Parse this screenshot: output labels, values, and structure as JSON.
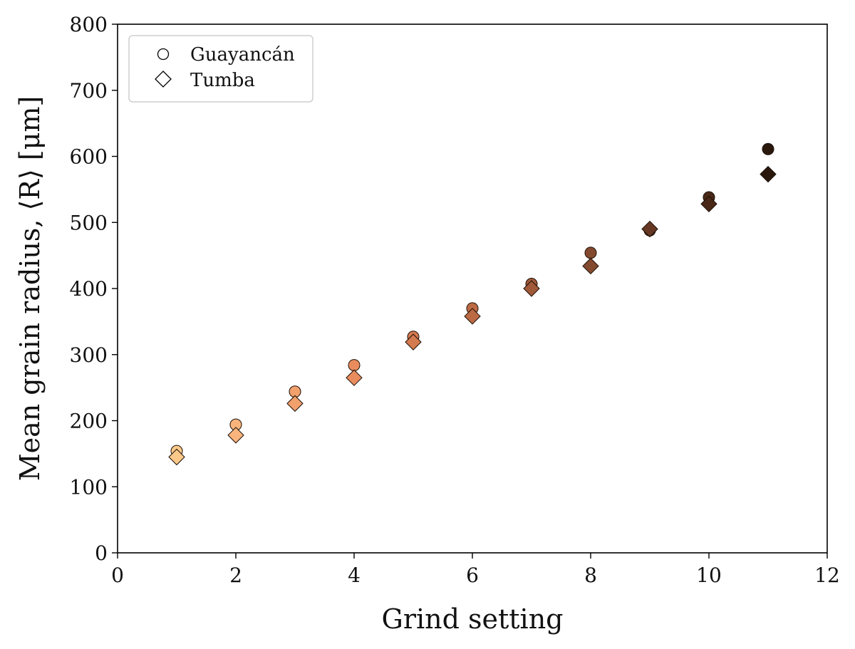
{
  "chart_data": {
    "type": "scatter",
    "xlabel": "Grind setting",
    "ylabel": "Mean grain radius, ⟨R⟩ [μm]",
    "xlim": [
      0,
      12
    ],
    "ylim": [
      0,
      800
    ],
    "xticks": [
      0,
      2,
      4,
      6,
      8,
      10,
      12
    ],
    "yticks": [
      0,
      100,
      200,
      300,
      400,
      500,
      600,
      700,
      800
    ],
    "grid": false,
    "legend_position": "top-left",
    "x": [
      1,
      2,
      3,
      4,
      5,
      6,
      7,
      8,
      9,
      10,
      11
    ],
    "point_colors": [
      "#fdc98a",
      "#f9b47d",
      "#f2a06c",
      "#e98c5d",
      "#d47a4f",
      "#bb6a44",
      "#a05a3a",
      "#844a2f",
      "#663823",
      "#4a2817",
      "#2a180d"
    ],
    "series": [
      {
        "name": "Guayancán",
        "marker": "circle",
        "values": [
          154,
          194,
          244,
          284,
          327,
          370,
          407,
          454,
          488,
          538,
          611
        ]
      },
      {
        "name": "Tumba",
        "marker": "diamond",
        "values": [
          145,
          178,
          226,
          265,
          319,
          358,
          400,
          434,
          490,
          528,
          573
        ]
      }
    ]
  }
}
